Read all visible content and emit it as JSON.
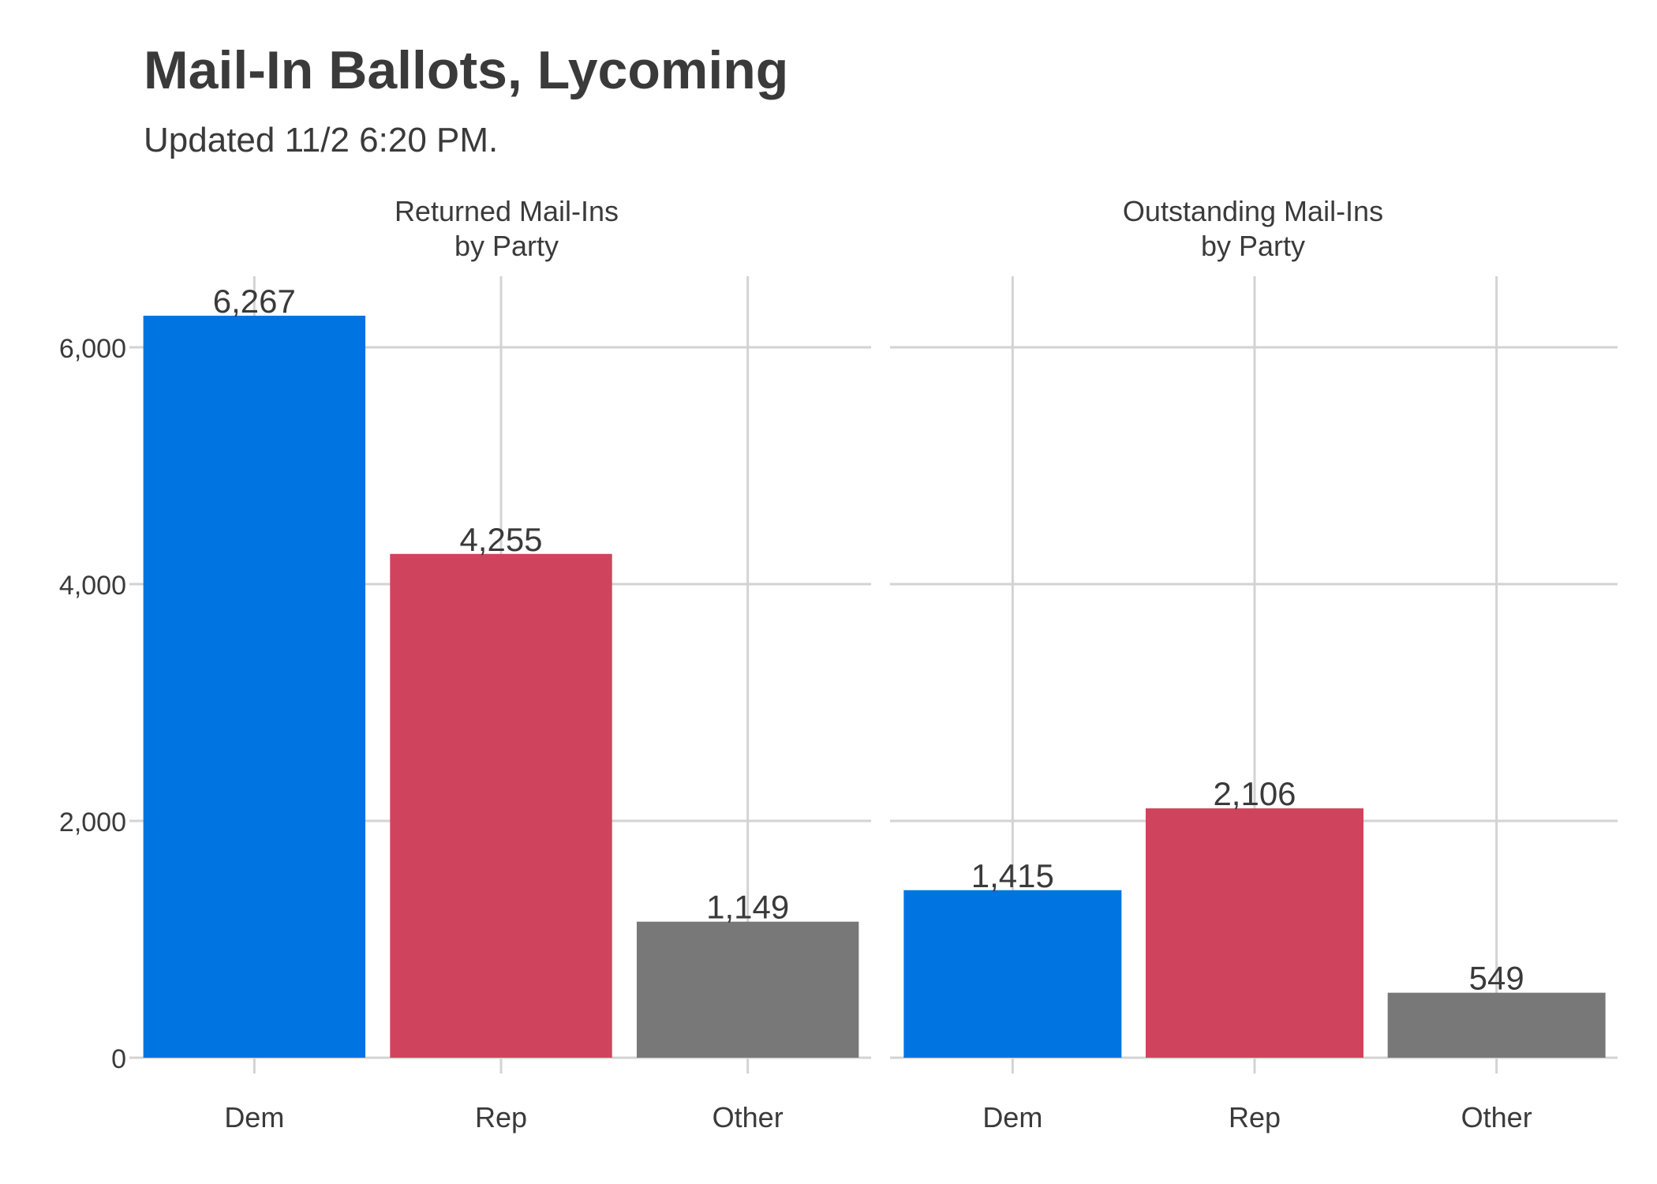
{
  "chart_data": {
    "type": "bar",
    "title": "Mail-In Ballots, Lycoming",
    "subtitle": "Updated 11/2 6:20 PM.",
    "xlabel": "",
    "ylabel": "",
    "ylim": [
      0,
      6600
    ],
    "y_ticks": [
      0,
      2000,
      4000,
      6000
    ],
    "y_tick_labels": [
      "0",
      "2,000",
      "4,000",
      "6,000"
    ],
    "grid": true,
    "categories": [
      "Dem",
      "Rep",
      "Other"
    ],
    "colors": {
      "Dem": "#0075e1",
      "Rep": "#d0435d",
      "Other": "#787878"
    },
    "panels": [
      {
        "title_line1": "Returned Mail-Ins",
        "title_line2": "by Party",
        "values": [
          6267,
          4255,
          1149
        ],
        "value_labels": [
          "6,267",
          "4,255",
          "1,149"
        ]
      },
      {
        "title_line1": "Outstanding Mail-Ins",
        "title_line2": "by Party",
        "values": [
          1415,
          2106,
          549
        ],
        "value_labels": [
          "1,415",
          "2,106",
          "549"
        ]
      }
    ]
  }
}
